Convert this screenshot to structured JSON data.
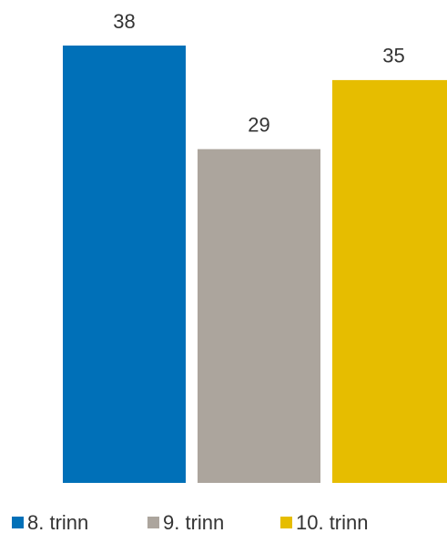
{
  "chart_data": {
    "type": "bar",
    "categories": [
      null
    ],
    "series": [
      {
        "name": "8. trinn",
        "color": "#0070b8",
        "values": [
          38
        ]
      },
      {
        "name": "9. trinn",
        "color": "#aca59d",
        "values": [
          29
        ]
      },
      {
        "name": "10. trinn",
        "color": "#e6bd00",
        "values": [
          35
        ]
      }
    ],
    "legend": "bottom"
  }
}
